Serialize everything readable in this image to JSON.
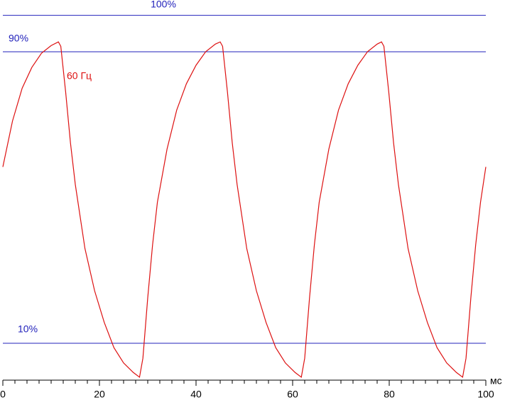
{
  "chart_data": {
    "type": "line",
    "annotation": "60 Гц",
    "x_label": "мс",
    "xlim": [
      0,
      100
    ],
    "xticks": [
      0,
      20,
      40,
      60,
      80,
      100
    ],
    "xminorticks": [
      2.5,
      5,
      7.5,
      10,
      12.5,
      15,
      17.5,
      22.5,
      25,
      27.5,
      30,
      32.5,
      35,
      37.5,
      42.5,
      45,
      47.5,
      50,
      52.5,
      55,
      57.5,
      62.5,
      65,
      67.5,
      70,
      72.5,
      75,
      77.5,
      82.5,
      85,
      87.5,
      90,
      92.5,
      95,
      97.5
    ],
    "ylim": [
      0,
      104.2
    ],
    "yticks": [
      {
        "value": 100,
        "label": "100%"
      },
      {
        "value": 90,
        "label": "90%"
      },
      {
        "value": 10,
        "label": "10%"
      }
    ],
    "grid": true,
    "grid_color": "#2222bb",
    "x": [
      0,
      2,
      4,
      6,
      8,
      10,
      11.5,
      12,
      13,
      14,
      15,
      17,
      19,
      21,
      23,
      25,
      27,
      28.3,
      29,
      30,
      31,
      32,
      34,
      36,
      38,
      40,
      42,
      44,
      45,
      45.5,
      46.5,
      47.5,
      48.5,
      50.5,
      52.5,
      54.5,
      56.5,
      58.5,
      60.5,
      61.8,
      62.5,
      63.5,
      64.5,
      65.5,
      67.5,
      69.5,
      71.5,
      73.5,
      75.5,
      77.5,
      78.4,
      78.9,
      79.9,
      80.9,
      81.9,
      83.9,
      85.9,
      87.9,
      89.9,
      91.9,
      93.9,
      95.2,
      95.9,
      96.9,
      97.9,
      98.9,
      100
    ],
    "series": [
      {
        "color": "#dd1111",
        "values": [
          58.4,
          71,
          80,
          85.7,
          89.6,
          91.7,
          92.7,
          91.5,
          79,
          65,
          53.6,
          36,
          24.4,
          15.7,
          8.8,
          4.6,
          2,
          0.7,
          5.9,
          22.5,
          37,
          48.7,
          63.3,
          74,
          81.2,
          86.3,
          90,
          92.1,
          92.7,
          91.5,
          79,
          65,
          53.6,
          36,
          24.4,
          15.7,
          8.8,
          4.6,
          2,
          0.7,
          5.9,
          22.5,
          37,
          48.7,
          63.3,
          74,
          81.2,
          86.3,
          90,
          92.1,
          92.7,
          91.5,
          79,
          65,
          53.6,
          36,
          24.4,
          15.7,
          8.8,
          4.6,
          2,
          0.7,
          5.9,
          22.5,
          37,
          48.7,
          58.4
        ]
      }
    ]
  }
}
